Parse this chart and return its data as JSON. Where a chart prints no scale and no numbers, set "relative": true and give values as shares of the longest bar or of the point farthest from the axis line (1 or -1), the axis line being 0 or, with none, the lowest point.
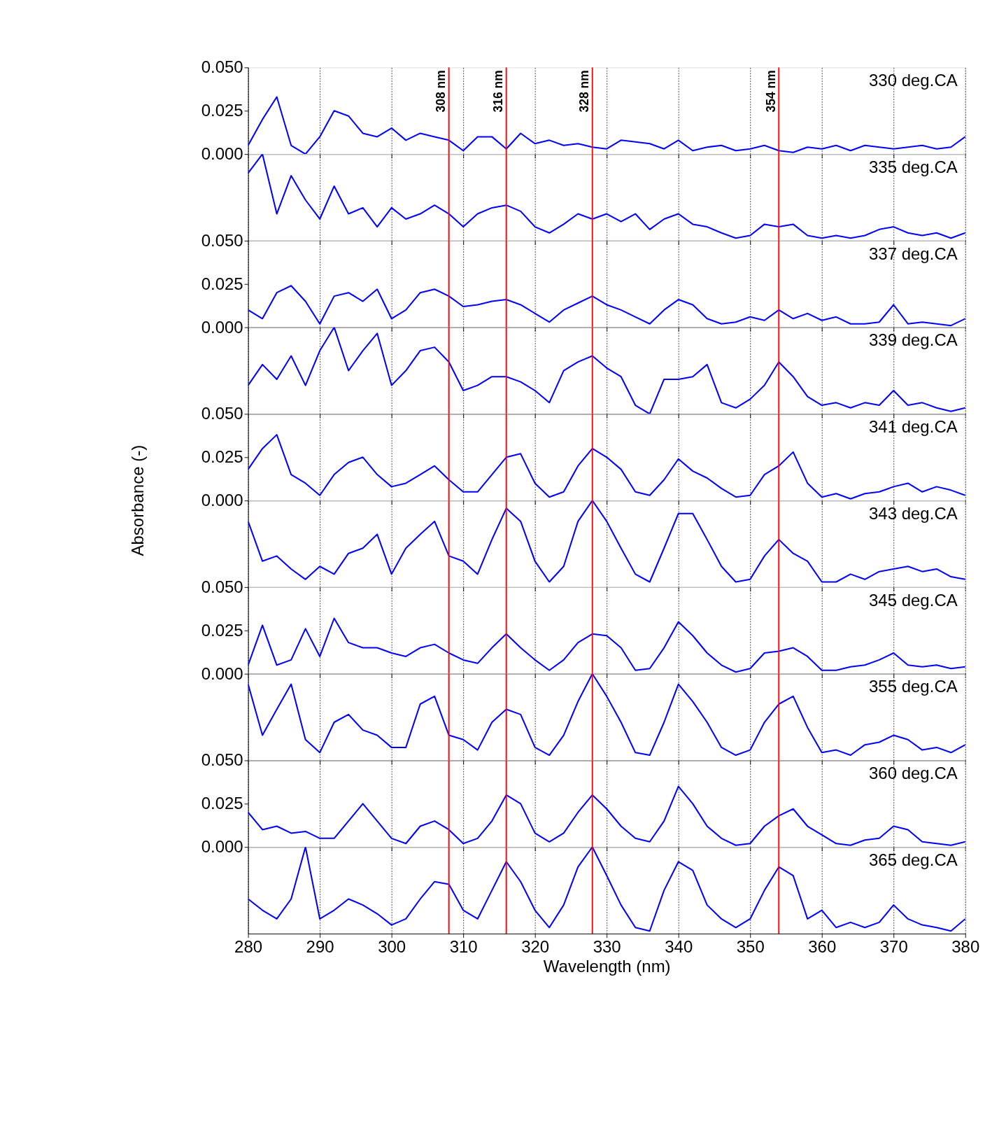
{
  "chart_data": [
    {
      "type": "line",
      "title": "330 deg.CA",
      "x": [
        280,
        282,
        284,
        286,
        288,
        290,
        292,
        294,
        296,
        298,
        300,
        302,
        304,
        306,
        308,
        310,
        312,
        314,
        316,
        318,
        320,
        322,
        324,
        326,
        328,
        330,
        332,
        334,
        336,
        338,
        340,
        342,
        344,
        346,
        348,
        350,
        352,
        354,
        356,
        358,
        360,
        362,
        364,
        366,
        368,
        370,
        372,
        374,
        376,
        378,
        380
      ],
      "series": [
        {
          "color": "#0000ff",
          "values": [
            0.005,
            0.02,
            0.033,
            0.005,
            0.0,
            0.01,
            0.025,
            0.022,
            0.012,
            0.01,
            0.015,
            0.008,
            0.012,
            0.01,
            0.008,
            0.002,
            0.01,
            0.01,
            0.003,
            0.012,
            0.006,
            0.008,
            0.005,
            0.006,
            0.004,
            0.003,
            0.008,
            0.007,
            0.006,
            0.003,
            0.008,
            0.002,
            0.004,
            0.005,
            0.002,
            0.003,
            0.005,
            0.002,
            0.001,
            0.004,
            0.003,
            0.005,
            0.002,
            0.005,
            0.004,
            0.003,
            0.004,
            0.005,
            0.003,
            0.004,
            0.01
          ]
        }
      ],
      "xlim": [
        280,
        380
      ],
      "xticks": [
        280,
        290,
        300,
        310,
        320,
        330,
        340,
        350,
        360,
        370,
        380
      ],
      "ylim": [
        0,
        0.05
      ],
      "yticks": [
        {
          "value": 0,
          "label": "0.000"
        },
        {
          "value": 0.025,
          "label": "0.025"
        },
        {
          "value": 0.05,
          "label": "0.050"
        }
      ],
      "tick_labels": "y",
      "grid": "x",
      "ref_lines": [
        {
          "axis": "x",
          "value": 308,
          "label": "308 nm",
          "color": "#ff0000"
        },
        {
          "axis": "x",
          "value": 316,
          "label": "316 nm",
          "color": "#ff0000"
        },
        {
          "axis": "x",
          "value": 328,
          "label": "328 nm",
          "color": "#ff0000"
        },
        {
          "axis": "x",
          "value": 354,
          "label": "354 nm",
          "color": "#ff0000"
        }
      ]
    },
    {
      "type": "line",
      "title": "335 deg.CA",
      "relative": true,
      "x": [
        280,
        282,
        284,
        286,
        288,
        290,
        292,
        294,
        296,
        298,
        300,
        302,
        304,
        306,
        308,
        310,
        312,
        314,
        316,
        318,
        320,
        322,
        324,
        326,
        328,
        330,
        332,
        334,
        336,
        338,
        340,
        342,
        344,
        346,
        348,
        350,
        352,
        354,
        356,
        358,
        360,
        362,
        364,
        366,
        368,
        370,
        372,
        374,
        376,
        378,
        380
      ],
      "series": [
        {
          "color": "#0000ff",
          "values": [
            0.78,
            1,
            0.31,
            0.75,
            0.47,
            0.25,
            0.63,
            0.31,
            0.38,
            0.16,
            0.38,
            0.25,
            0.31,
            0.41,
            0.31,
            0.16,
            0.31,
            0.38,
            0.41,
            0.34,
            0.16,
            0.09,
            0.19,
            0.31,
            0.25,
            0.31,
            0.22,
            0.31,
            0.13,
            0.25,
            0.31,
            0.19,
            0.16,
            0.09,
            0.03,
            0.06,
            0.19,
            0.16,
            0.19,
            0.06,
            0.03,
            0.06,
            0.03,
            0.06,
            0.13,
            0.16,
            0.09,
            0.06,
            0.09,
            0.03,
            0.09
          ]
        }
      ],
      "xlim": [
        280,
        380
      ],
      "xticks": [
        280,
        290,
        300,
        310,
        320,
        330,
        340,
        350,
        360,
        370,
        380
      ],
      "tick_labels": false,
      "grid": "x",
      "ref_lines": [
        {
          "axis": "x",
          "value": 308,
          "color": "#ff0000"
        },
        {
          "axis": "x",
          "value": 316,
          "color": "#ff0000"
        },
        {
          "axis": "x",
          "value": 328,
          "color": "#ff0000"
        },
        {
          "axis": "x",
          "value": 354,
          "color": "#ff0000"
        }
      ]
    },
    {
      "type": "line",
      "title": "337 deg.CA",
      "x": [
        280,
        282,
        284,
        286,
        288,
        290,
        292,
        294,
        296,
        298,
        300,
        302,
        304,
        306,
        308,
        310,
        312,
        314,
        316,
        318,
        320,
        322,
        324,
        326,
        328,
        330,
        332,
        334,
        336,
        338,
        340,
        342,
        344,
        346,
        348,
        350,
        352,
        354,
        356,
        358,
        360,
        362,
        364,
        366,
        368,
        370,
        372,
        374,
        376,
        378,
        380
      ],
      "series": [
        {
          "color": "#0000ff",
          "values": [
            0.01,
            0.005,
            0.02,
            0.024,
            0.015,
            0.002,
            0.018,
            0.02,
            0.015,
            0.022,
            0.005,
            0.01,
            0.02,
            0.022,
            0.018,
            0.012,
            0.013,
            0.015,
            0.016,
            0.013,
            0.008,
            0.003,
            0.01,
            0.014,
            0.018,
            0.013,
            0.01,
            0.006,
            0.002,
            0.01,
            0.016,
            0.013,
            0.005,
            0.002,
            0.003,
            0.006,
            0.004,
            0.01,
            0.005,
            0.008,
            0.004,
            0.006,
            0.002,
            0.002,
            0.003,
            0.013,
            0.002,
            0.003,
            0.002,
            0.001,
            0.005
          ]
        }
      ],
      "xlim": [
        280,
        380
      ],
      "xticks": [
        280,
        290,
        300,
        310,
        320,
        330,
        340,
        350,
        360,
        370,
        380
      ],
      "ylim": [
        0,
        0.05
      ],
      "yticks": [
        {
          "value": 0,
          "label": "0.000"
        },
        {
          "value": 0.025,
          "label": "0.025"
        },
        {
          "value": 0.05,
          "label": "0.050"
        }
      ],
      "tick_labels": "y",
      "grid": "x",
      "ref_lines": [
        {
          "axis": "x",
          "value": 308,
          "color": "#ff0000"
        },
        {
          "axis": "x",
          "value": 316,
          "color": "#ff0000"
        },
        {
          "axis": "x",
          "value": 328,
          "color": "#ff0000"
        },
        {
          "axis": "x",
          "value": 354,
          "color": "#ff0000"
        }
      ]
    },
    {
      "type": "line",
      "title": "339 deg.CA",
      "relative": true,
      "x": [
        280,
        282,
        284,
        286,
        288,
        290,
        292,
        294,
        296,
        298,
        300,
        302,
        304,
        306,
        308,
        310,
        312,
        314,
        316,
        318,
        320,
        322,
        324,
        326,
        328,
        330,
        332,
        334,
        336,
        338,
        340,
        342,
        344,
        346,
        348,
        350,
        352,
        354,
        356,
        358,
        360,
        362,
        364,
        366,
        368,
        370,
        372,
        374,
        376,
        378,
        380
      ],
      "series": [
        {
          "color": "#0000ff",
          "values": [
            0.33,
            0.57,
            0.4,
            0.67,
            0.33,
            0.73,
            1,
            0.5,
            0.73,
            0.93,
            0.33,
            0.5,
            0.73,
            0.77,
            0.6,
            0.27,
            0.33,
            0.43,
            0.43,
            0.37,
            0.27,
            0.13,
            0.5,
            0.6,
            0.67,
            0.53,
            0.43,
            0.1,
            0,
            0.4,
            0.4,
            0.43,
            0.57,
            0.13,
            0.07,
            0.17,
            0.33,
            0.6,
            0.43,
            0.2,
            0.1,
            0.13,
            0.07,
            0.13,
            0.1,
            0.27,
            0.1,
            0.13,
            0.07,
            0.03,
            0.07
          ]
        }
      ],
      "xlim": [
        280,
        380
      ],
      "xticks": [
        280,
        290,
        300,
        310,
        320,
        330,
        340,
        350,
        360,
        370,
        380
      ],
      "tick_labels": false,
      "grid": "x",
      "ref_lines": [
        {
          "axis": "x",
          "value": 308,
          "color": "#ff0000"
        },
        {
          "axis": "x",
          "value": 316,
          "color": "#ff0000"
        },
        {
          "axis": "x",
          "value": 328,
          "color": "#ff0000"
        },
        {
          "axis": "x",
          "value": 354,
          "color": "#ff0000"
        }
      ]
    },
    {
      "type": "line",
      "title": "341 deg.CA",
      "ylabel": "Absorbance (-)",
      "x": [
        280,
        282,
        284,
        286,
        288,
        290,
        292,
        294,
        296,
        298,
        300,
        302,
        304,
        306,
        308,
        310,
        312,
        314,
        316,
        318,
        320,
        322,
        324,
        326,
        328,
        330,
        332,
        334,
        336,
        338,
        340,
        342,
        344,
        346,
        348,
        350,
        352,
        354,
        356,
        358,
        360,
        362,
        364,
        366,
        368,
        370,
        372,
        374,
        376,
        378,
        380
      ],
      "series": [
        {
          "color": "#0000ff",
          "values": [
            0.018,
            0.03,
            0.038,
            0.015,
            0.01,
            0.003,
            0.015,
            0.022,
            0.025,
            0.015,
            0.008,
            0.01,
            0.015,
            0.02,
            0.012,
            0.005,
            0.005,
            0.015,
            0.025,
            0.027,
            0.01,
            0.002,
            0.005,
            0.02,
            0.03,
            0.025,
            0.018,
            0.005,
            0.003,
            0.012,
            0.024,
            0.017,
            0.013,
            0.007,
            0.002,
            0.003,
            0.015,
            0.02,
            0.028,
            0.01,
            0.002,
            0.004,
            0.001,
            0.004,
            0.005,
            0.008,
            0.01,
            0.005,
            0.008,
            0.006,
            0.003
          ]
        }
      ],
      "xlim": [
        280,
        380
      ],
      "xticks": [
        280,
        290,
        300,
        310,
        320,
        330,
        340,
        350,
        360,
        370,
        380
      ],
      "ylim": [
        0,
        0.05
      ],
      "yticks": [
        {
          "value": 0,
          "label": "0.000"
        },
        {
          "value": 0.025,
          "label": "0.025"
        },
        {
          "value": 0.05,
          "label": "0.050"
        }
      ],
      "tick_labels": "y",
      "grid": "x",
      "ref_lines": [
        {
          "axis": "x",
          "value": 308,
          "color": "#ff0000"
        },
        {
          "axis": "x",
          "value": 316,
          "color": "#ff0000"
        },
        {
          "axis": "x",
          "value": 328,
          "color": "#ff0000"
        },
        {
          "axis": "x",
          "value": 354,
          "color": "#ff0000"
        }
      ]
    },
    {
      "type": "line",
      "title": "343 deg.CA",
      "relative": true,
      "x": [
        280,
        282,
        284,
        286,
        288,
        290,
        292,
        294,
        296,
        298,
        300,
        302,
        304,
        306,
        308,
        310,
        312,
        314,
        316,
        318,
        320,
        322,
        324,
        326,
        328,
        330,
        332,
        334,
        336,
        338,
        340,
        342,
        344,
        346,
        348,
        350,
        352,
        354,
        356,
        358,
        360,
        362,
        364,
        366,
        368,
        370,
        372,
        374,
        376,
        378,
        380
      ],
      "series": [
        {
          "color": "#0000ff",
          "values": [
            0.76,
            0.3,
            0.36,
            0.21,
            0.09,
            0.24,
            0.15,
            0.39,
            0.45,
            0.61,
            0.15,
            0.45,
            0.61,
            0.76,
            0.36,
            0.3,
            0.15,
            0.55,
            0.91,
            0.76,
            0.3,
            0.06,
            0.24,
            0.76,
            1,
            0.76,
            0.45,
            0.15,
            0.06,
            0.45,
            0.85,
            0.85,
            0.55,
            0.24,
            0.06,
            0.09,
            0.36,
            0.55,
            0.39,
            0.3,
            0.06,
            0.06,
            0.15,
            0.09,
            0.18,
            0.21,
            0.24,
            0.18,
            0.21,
            0.12,
            0.09
          ]
        }
      ],
      "xlim": [
        280,
        380
      ],
      "xticks": [
        280,
        290,
        300,
        310,
        320,
        330,
        340,
        350,
        360,
        370,
        380
      ],
      "tick_labels": false,
      "grid": "x",
      "ref_lines": [
        {
          "axis": "x",
          "value": 308,
          "color": "#ff0000"
        },
        {
          "axis": "x",
          "value": 316,
          "color": "#ff0000"
        },
        {
          "axis": "x",
          "value": 328,
          "color": "#ff0000"
        },
        {
          "axis": "x",
          "value": 354,
          "color": "#ff0000"
        }
      ]
    },
    {
      "type": "line",
      "title": "345 deg.CA",
      "x": [
        280,
        282,
        284,
        286,
        288,
        290,
        292,
        294,
        296,
        298,
        300,
        302,
        304,
        306,
        308,
        310,
        312,
        314,
        316,
        318,
        320,
        322,
        324,
        326,
        328,
        330,
        332,
        334,
        336,
        338,
        340,
        342,
        344,
        346,
        348,
        350,
        352,
        354,
        356,
        358,
        360,
        362,
        364,
        366,
        368,
        370,
        372,
        374,
        376,
        378,
        380
      ],
      "series": [
        {
          "color": "#0000ff",
          "values": [
            0.005,
            0.028,
            0.005,
            0.008,
            0.026,
            0.01,
            0.032,
            0.018,
            0.015,
            0.015,
            0.012,
            0.01,
            0.015,
            0.017,
            0.012,
            0.008,
            0.006,
            0.015,
            0.023,
            0.015,
            0.008,
            0.002,
            0.008,
            0.018,
            0.023,
            0.022,
            0.015,
            0.002,
            0.003,
            0.015,
            0.03,
            0.022,
            0.012,
            0.005,
            0.001,
            0.003,
            0.012,
            0.013,
            0.015,
            0.01,
            0.002,
            0.002,
            0.004,
            0.005,
            0.008,
            0.012,
            0.005,
            0.004,
            0.005,
            0.003,
            0.004
          ]
        }
      ],
      "xlim": [
        280,
        380
      ],
      "xticks": [
        280,
        290,
        300,
        310,
        320,
        330,
        340,
        350,
        360,
        370,
        380
      ],
      "ylim": [
        0,
        0.05
      ],
      "yticks": [
        {
          "value": 0,
          "label": "0.000"
        },
        {
          "value": 0.025,
          "label": "0.025"
        },
        {
          "value": 0.05,
          "label": "0.050"
        }
      ],
      "tick_labels": "y",
      "grid": "x",
      "ref_lines": [
        {
          "axis": "x",
          "value": 308,
          "color": "#ff0000"
        },
        {
          "axis": "x",
          "value": 316,
          "color": "#ff0000"
        },
        {
          "axis": "x",
          "value": 328,
          "color": "#ff0000"
        },
        {
          "axis": "x",
          "value": 354,
          "color": "#ff0000"
        }
      ]
    },
    {
      "type": "line",
      "title": "355 deg.CA",
      "relative": true,
      "x": [
        280,
        282,
        284,
        286,
        288,
        290,
        292,
        294,
        296,
        298,
        300,
        302,
        304,
        306,
        308,
        310,
        312,
        314,
        316,
        318,
        320,
        322,
        324,
        326,
        328,
        330,
        332,
        334,
        336,
        338,
        340,
        342,
        344,
        346,
        348,
        350,
        352,
        354,
        356,
        358,
        360,
        362,
        364,
        366,
        368,
        370,
        372,
        374,
        376,
        378,
        380
      ],
      "series": [
        {
          "color": "#0000ff",
          "values": [
            0.88,
            0.29,
            0.59,
            0.88,
            0.24,
            0.09,
            0.44,
            0.53,
            0.35,
            0.29,
            0.15,
            0.15,
            0.65,
            0.74,
            0.29,
            0.24,
            0.12,
            0.44,
            0.59,
            0.53,
            0.15,
            0.06,
            0.29,
            0.68,
            1,
            0.74,
            0.44,
            0.09,
            0.06,
            0.44,
            0.88,
            0.68,
            0.44,
            0.15,
            0.06,
            0.12,
            0.44,
            0.65,
            0.74,
            0.38,
            0.09,
            0.12,
            0.06,
            0.18,
            0.21,
            0.29,
            0.24,
            0.12,
            0.15,
            0.09,
            0.18
          ]
        }
      ],
      "xlim": [
        280,
        380
      ],
      "xticks": [
        280,
        290,
        300,
        310,
        320,
        330,
        340,
        350,
        360,
        370,
        380
      ],
      "tick_labels": false,
      "grid": "x",
      "ref_lines": [
        {
          "axis": "x",
          "value": 308,
          "color": "#ff0000"
        },
        {
          "axis": "x",
          "value": 316,
          "color": "#ff0000"
        },
        {
          "axis": "x",
          "value": 328,
          "color": "#ff0000"
        },
        {
          "axis": "x",
          "value": 354,
          "color": "#ff0000"
        }
      ]
    },
    {
      "type": "line",
      "title": "360 deg.CA",
      "x": [
        280,
        282,
        284,
        286,
        288,
        290,
        292,
        294,
        296,
        298,
        300,
        302,
        304,
        306,
        308,
        310,
        312,
        314,
        316,
        318,
        320,
        322,
        324,
        326,
        328,
        330,
        332,
        334,
        336,
        338,
        340,
        342,
        344,
        346,
        348,
        350,
        352,
        354,
        356,
        358,
        360,
        362,
        364,
        366,
        368,
        370,
        372,
        374,
        376,
        378,
        380
      ],
      "series": [
        {
          "color": "#0000ff",
          "values": [
            0.02,
            0.01,
            0.012,
            0.008,
            0.009,
            0.005,
            0.005,
            0.015,
            0.025,
            0.015,
            0.005,
            0.002,
            0.012,
            0.015,
            0.01,
            0.002,
            0.005,
            0.015,
            0.03,
            0.025,
            0.008,
            0.003,
            0.008,
            0.02,
            0.03,
            0.022,
            0.012,
            0.005,
            0.003,
            0.015,
            0.035,
            0.025,
            0.012,
            0.005,
            0.001,
            0.002,
            0.012,
            0.018,
            0.022,
            0.012,
            0.007,
            0.002,
            0.001,
            0.004,
            0.005,
            0.012,
            0.01,
            0.003,
            0.002,
            0.001,
            0.003
          ]
        }
      ],
      "xlim": [
        280,
        380
      ],
      "xticks": [
        280,
        290,
        300,
        310,
        320,
        330,
        340,
        350,
        360,
        370,
        380
      ],
      "ylim": [
        0,
        0.05
      ],
      "yticks": [
        {
          "value": 0,
          "label": "0.000"
        },
        {
          "value": 0.025,
          "label": "0.025"
        },
        {
          "value": 0.05,
          "label": "0.050"
        }
      ],
      "tick_labels": "y",
      "grid": "x",
      "ref_lines": [
        {
          "axis": "x",
          "value": 308,
          "color": "#ff0000"
        },
        {
          "axis": "x",
          "value": 316,
          "color": "#ff0000"
        },
        {
          "axis": "x",
          "value": 328,
          "color": "#ff0000"
        },
        {
          "axis": "x",
          "value": 354,
          "color": "#ff0000"
        }
      ]
    },
    {
      "type": "line",
      "title": "365 deg.CA",
      "relative": true,
      "xlabel": "Wavelength (nm)",
      "x": [
        280,
        282,
        284,
        286,
        288,
        290,
        292,
        294,
        296,
        298,
        300,
        302,
        304,
        306,
        308,
        310,
        312,
        314,
        316,
        318,
        320,
        322,
        324,
        326,
        328,
        330,
        332,
        334,
        336,
        338,
        340,
        342,
        344,
        346,
        348,
        350,
        352,
        354,
        356,
        358,
        360,
        362,
        364,
        366,
        368,
        370,
        372,
        374,
        376,
        378,
        380
      ],
      "series": [
        {
          "color": "#0000ff",
          "values": [
            0.4,
            0.27,
            0.17,
            0.4,
            1,
            0.17,
            0.27,
            0.4,
            0.33,
            0.23,
            0.1,
            0.17,
            0.4,
            0.6,
            0.57,
            0.27,
            0.17,
            0.5,
            0.83,
            0.6,
            0.27,
            0.07,
            0.33,
            0.77,
            1,
            0.67,
            0.33,
            0.07,
            0.03,
            0.5,
            0.83,
            0.73,
            0.33,
            0.17,
            0.07,
            0.17,
            0.5,
            0.77,
            0.67,
            0.17,
            0.27,
            0.07,
            0.13,
            0.07,
            0.13,
            0.33,
            0.17,
            0.1,
            0.07,
            0.03,
            0.17
          ]
        }
      ],
      "xlim": [
        280,
        380
      ],
      "xticks": [
        280,
        290,
        300,
        310,
        320,
        330,
        340,
        350,
        360,
        370,
        380
      ],
      "tick_labels": "x",
      "grid": "x",
      "ref_lines": [
        {
          "axis": "x",
          "value": 308,
          "color": "#ff0000"
        },
        {
          "axis": "x",
          "value": 316,
          "color": "#ff0000"
        },
        {
          "axis": "x",
          "value": 328,
          "color": "#ff0000"
        },
        {
          "axis": "x",
          "value": 354,
          "color": "#ff0000"
        }
      ]
    }
  ]
}
